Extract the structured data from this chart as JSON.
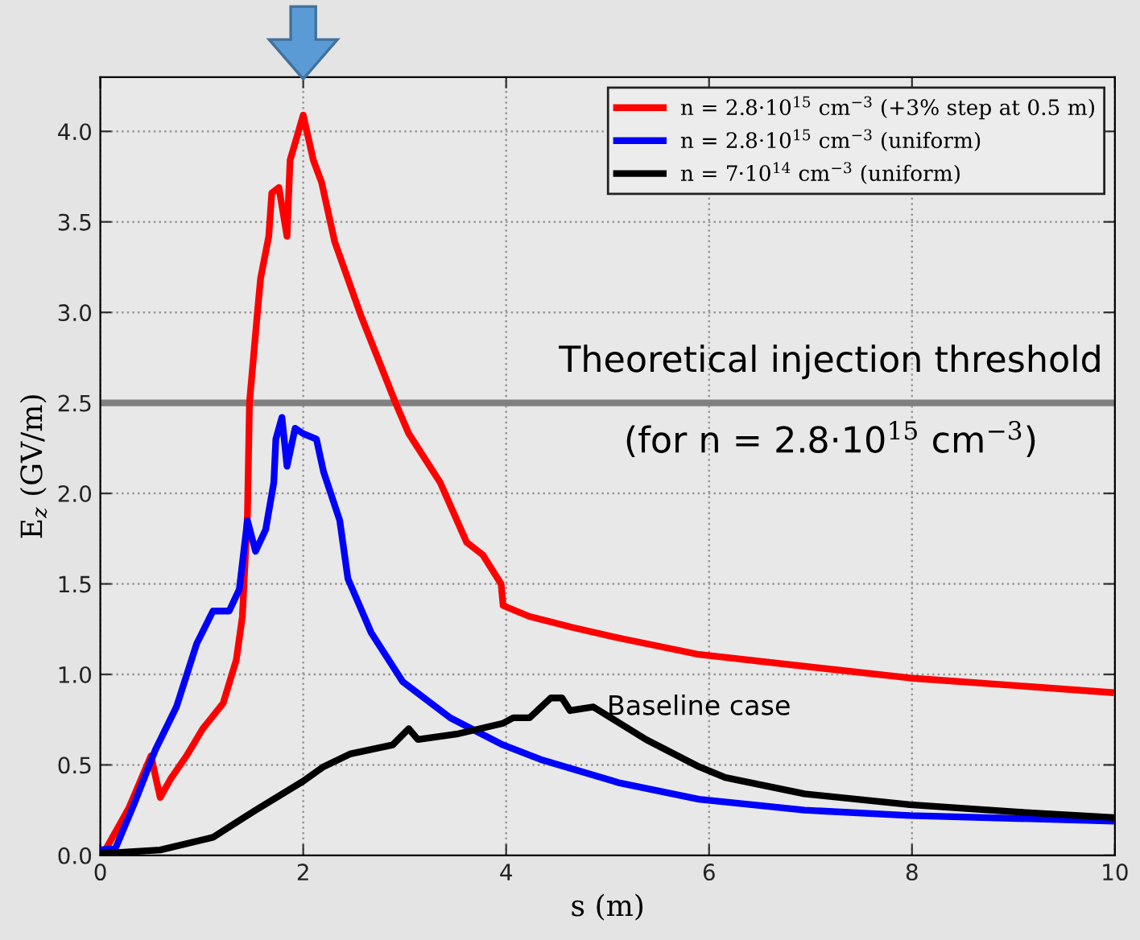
{
  "chart_data": {
    "type": "line",
    "xlabel": "s (m)",
    "ylabel": "E$_{z}$ (GV/m)",
    "xlim": [
      0,
      10
    ],
    "ylim": [
      0,
      4.3
    ],
    "xticks": [
      0,
      2,
      4,
      6,
      8,
      10
    ],
    "yticks": [
      {
        "value": 0,
        "label": "0.0"
      },
      0.5,
      {
        "value": 1,
        "label": "1.0"
      },
      1.5,
      {
        "value": 2,
        "label": "2.0"
      },
      2.5,
      {
        "value": 3,
        "label": "3.0"
      },
      3.5,
      {
        "value": 4,
        "label": "4.0"
      }
    ],
    "grid": true,
    "legend": "top right",
    "line_style": "solid",
    "marker": "none",
    "series": [
      {
        "name": "n = 2.8·10$^{15}$ cm$^{−3}$ (+3% step at 0.5 m)",
        "color": "#ff0000",
        "x": [
          0.05,
          0.28,
          0.5,
          0.55,
          0.59,
          0.69,
          0.85,
          1.01,
          1.21,
          1.34,
          1.4,
          1.45,
          1.47,
          1.55,
          1.58,
          1.66,
          1.69,
          1.76,
          1.84,
          1.87,
          2.0,
          2.1,
          2.18,
          2.31,
          2.57,
          2.91,
          3.04,
          3.35,
          3.61,
          3.77,
          3.95,
          3.97,
          4.23,
          4.65,
          5.12,
          5.9,
          7.98,
          9.96
        ],
        "values": [
          0.03,
          0.26,
          0.55,
          0.42,
          0.32,
          0.42,
          0.55,
          0.7,
          0.84,
          1.08,
          1.32,
          1.88,
          2.5,
          3.01,
          3.19,
          3.42,
          3.66,
          3.69,
          3.42,
          3.84,
          4.09,
          3.84,
          3.72,
          3.39,
          2.98,
          2.5,
          2.33,
          2.06,
          1.73,
          1.66,
          1.5,
          1.38,
          1.32,
          1.26,
          1.2,
          1.11,
          0.98,
          0.9
        ]
      },
      {
        "name": "n = 2.8·10$^{15}$ cm$^{−3}$ (uniform)",
        "color": "#0000ff",
        "x": [
          0,
          0.15,
          0.33,
          0.54,
          0.75,
          0.95,
          1.11,
          1.27,
          1.37,
          1.45,
          1.53,
          1.63,
          1.71,
          1.73,
          1.79,
          1.84,
          1.92,
          2.0,
          2.13,
          2.2,
          2.36,
          2.44,
          2.67,
          2.98,
          3.45,
          3.97,
          4.34,
          5.12,
          5.9,
          6.94,
          7.98,
          9.96
        ],
        "values": [
          0.03,
          0.04,
          0.28,
          0.58,
          0.82,
          1.17,
          1.35,
          1.35,
          1.47,
          1.85,
          1.68,
          1.8,
          2.06,
          2.3,
          2.42,
          2.15,
          2.36,
          2.33,
          2.3,
          2.12,
          1.85,
          1.53,
          1.23,
          0.96,
          0.76,
          0.61,
          0.53,
          0.4,
          0.31,
          0.25,
          0.22,
          0.19
        ]
      },
      {
        "name": "n = 7·10$^{14}$ cm$^{−3}$ (uniform)",
        "color": "#000000",
        "x": [
          0,
          0.59,
          1.11,
          1.53,
          2.0,
          2.2,
          2.46,
          2.88,
          3.04,
          3.13,
          3.51,
          3.97,
          4.07,
          4.23,
          4.44,
          4.55,
          4.63,
          4.86,
          5.38,
          5.9,
          6.16,
          6.94,
          7.98,
          9.03,
          9.96
        ],
        "values": [
          0.01,
          0.03,
          0.1,
          0.25,
          0.41,
          0.49,
          0.56,
          0.61,
          0.7,
          0.64,
          0.67,
          0.73,
          0.76,
          0.76,
          0.87,
          0.87,
          0.8,
          0.82,
          0.64,
          0.49,
          0.43,
          0.34,
          0.28,
          0.24,
          0.21
        ]
      }
    ],
    "ref_lines": [
      {
        "axis": "y",
        "value": 2.5,
        "color": "#808080"
      }
    ],
    "annotations": [
      "Theoretical injection threshold\n(for n = 2.8·10$^{15}$ cm$^{−3}$)",
      "Baseline case"
    ]
  }
}
